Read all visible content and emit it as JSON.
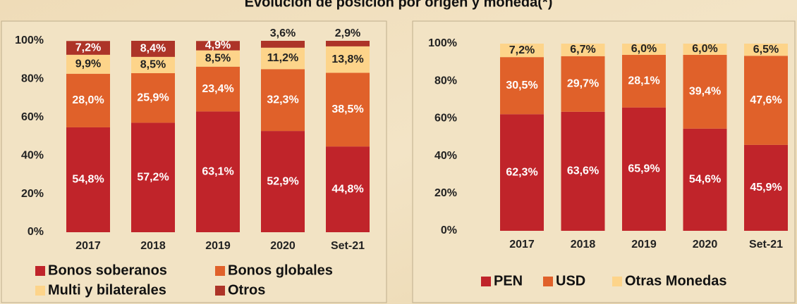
{
  "title": "Evolución de posición por origen y moneda(*)",
  "chart_data": [
    {
      "type": "stacked_bar",
      "categories": [
        "2017",
        "2018",
        "2019",
        "2020",
        "Set-21"
      ],
      "series": [
        {
          "name": "Bonos soberanos",
          "color": "#c0242a",
          "values": [
            54.8,
            57.2,
            63.1,
            52.9,
            44.8
          ],
          "value_labels": [
            "54,8%",
            "57,2%",
            "63,1%",
            "52,9%",
            "44,8%"
          ]
        },
        {
          "name": "Bonos globales",
          "color": "#e0612a",
          "values": [
            28.0,
            25.9,
            23.4,
            32.3,
            38.5
          ],
          "value_labels": [
            "28,0%",
            "25,9%",
            "23,4%",
            "32,3%",
            "38,5%"
          ]
        },
        {
          "name": "Multi y bilaterales",
          "color": "#fdd48a",
          "values": [
            9.9,
            8.5,
            8.5,
            11.2,
            13.8
          ],
          "value_labels": [
            "9,9%",
            "8,5%",
            "8,5%",
            "11,2%",
            "13,8%"
          ]
        },
        {
          "name": "Otros",
          "color": "#ad3428",
          "values": [
            7.2,
            8.4,
            4.9,
            3.6,
            2.9
          ],
          "value_labels": [
            "7,2%",
            "8,4%",
            "4,9%",
            "3,6%",
            "2,9%"
          ]
        }
      ],
      "ylim": [
        0,
        100
      ],
      "yticks": [
        {
          "value": 0,
          "label": "0%"
        },
        {
          "value": 20,
          "label": "20%"
        },
        {
          "value": 40,
          "label": "40%"
        },
        {
          "value": 60,
          "label": "60%"
        },
        {
          "value": 80,
          "label": "80%"
        },
        {
          "value": 100,
          "label": "100%"
        }
      ]
    },
    {
      "type": "stacked_bar",
      "categories": [
        "2017",
        "2018",
        "2019",
        "2020",
        "Set-21"
      ],
      "series": [
        {
          "name": "PEN",
          "color": "#c0242a",
          "values": [
            62.3,
            63.6,
            65.9,
            54.6,
            45.9
          ],
          "value_labels": [
            "62,3%",
            "63,6%",
            "65,9%",
            "54,6%",
            "45,9%"
          ]
        },
        {
          "name": "USD",
          "color": "#e0612a",
          "values": [
            30.5,
            29.7,
            28.1,
            39.4,
            47.6
          ],
          "value_labels": [
            "30,5%",
            "29,7%",
            "28,1%",
            "39,4%",
            "47,6%"
          ]
        },
        {
          "name": "Otras Monedas",
          "color": "#fdd48a",
          "values": [
            7.2,
            6.7,
            6.0,
            6.0,
            6.5
          ],
          "value_labels": [
            "7,2%",
            "6,7%",
            "6,0%",
            "6,0%",
            "6,5%"
          ]
        }
      ],
      "ylim": [
        0,
        100
      ],
      "yticks": [
        {
          "value": 0,
          "label": "0%"
        },
        {
          "value": 20,
          "label": "20%"
        },
        {
          "value": 40,
          "label": "40%"
        },
        {
          "value": 60,
          "label": "60%"
        },
        {
          "value": 80,
          "label": "80%"
        },
        {
          "value": 100,
          "label": "100%"
        }
      ]
    }
  ]
}
